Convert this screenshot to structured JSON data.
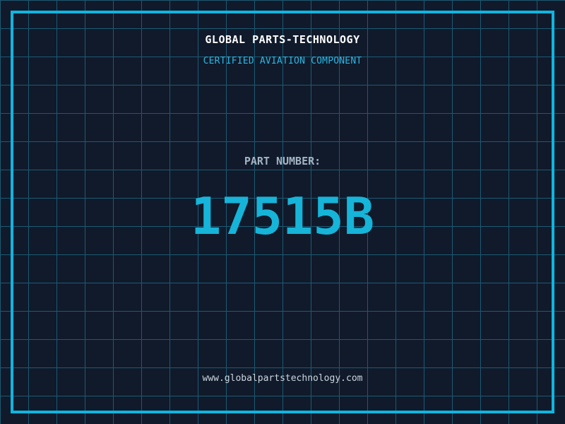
{
  "colors": {
    "background": "#101a2b",
    "grid_line": "#1c5a73",
    "frame_border": "#0db6e0",
    "title": "#ffffff",
    "subtitle": "#2bb7e2",
    "part_label": "#a3b4c4",
    "part_number": "#16b4d8",
    "url": "#ccd6de"
  },
  "header": {
    "title": "GLOBAL PARTS-TECHNOLOGY",
    "subtitle": "CERTIFIED AVIATION COMPONENT"
  },
  "part": {
    "label": "PART NUMBER:",
    "number": "17515B"
  },
  "footer": {
    "url": "www.globalpartstechnology.com"
  }
}
